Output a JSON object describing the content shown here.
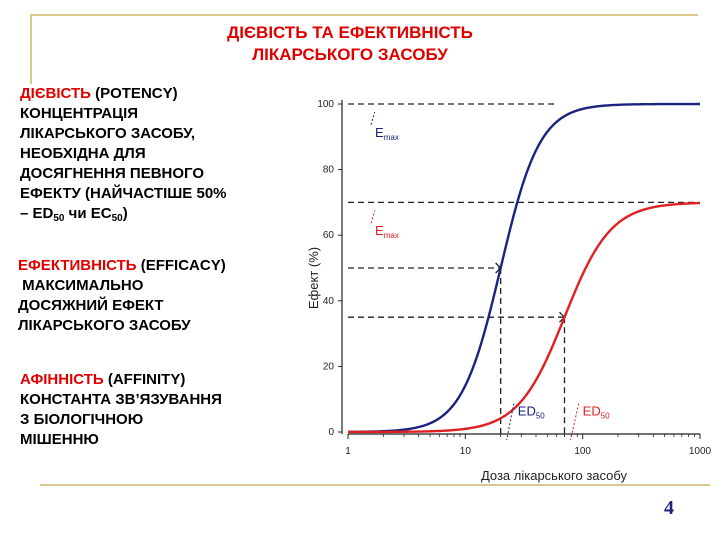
{
  "slide": {
    "title_line1": "ДІЄВІСТЬ ТА ЕФЕКТИВНІСТЬ",
    "title_line2": "ЛІКАРСЬКОГО ЗАСОБУ",
    "potency": {
      "term": "ДІЄВІСТЬ",
      "term_en": " (POTENCY)",
      "lines": [
        "КОНЦЕНТРАЦІЯ",
        "ЛІКАРСЬКОГО ЗАСОБУ,",
        "НЕОБХІДНА ДЛЯ",
        "ДОСЯГНЕННЯ ПЕВНОГО",
        "ЕФЕКТУ (НАЙЧАСТІШЕ 50%"
      ],
      "last_prefix": "– ED",
      "last_sub1": "50",
      "last_mid": " чи EC",
      "last_sub2": "50",
      "last_suffix": ")"
    },
    "efficacy": {
      "term": "ЕФЕКТИВНІСТЬ",
      "term_en": " (EFFICACY)",
      "lines": [
        " МАКСИМАЛЬНО",
        "ДОСЯЖНИЙ ЕФЕКТ",
        "ЛІКАРСЬКОГО ЗАСОБУ"
      ]
    },
    "affinity": {
      "term": "АФІННІСТЬ",
      "term_en": " (AFFINITY)",
      "lines": [
        "КОНСТАНТА ЗВ’ЯЗУВАННЯ",
        "З БІОЛОГІЧНОЮ",
        "МІШЕННЮ"
      ]
    },
    "page_number": "4"
  },
  "chart_data": {
    "type": "line",
    "xlabel": "Доза лікарського засобу",
    "ylabel": "Ефект (%)",
    "xscale": "log",
    "xlim": [
      1,
      1000
    ],
    "ylim": [
      0,
      100
    ],
    "xticks": [
      1,
      10,
      100,
      1000
    ],
    "xtick_labels": [
      "1",
      "10",
      "100",
      "1000"
    ],
    "yticks": [
      0,
      20,
      40,
      60,
      80,
      100
    ],
    "ytick_labels": [
      "0",
      "20",
      "40",
      "60",
      "80",
      "100"
    ],
    "grid": false,
    "series": [
      {
        "color": "#1a237e",
        "emax": 100,
        "ed50": 20,
        "hill": 2.6,
        "x": [
          1,
          5,
          10,
          15,
          20,
          30,
          50,
          100,
          300,
          1000
        ],
        "y": [
          0,
          1.5,
          14,
          32,
          50,
          74,
          92,
          99,
          100,
          100
        ]
      },
      {
        "color": "#e02020",
        "emax": 70,
        "ed50": 70,
        "hill": 2.2,
        "x": [
          1,
          10,
          20,
          40,
          70,
          100,
          200,
          400,
          1000
        ],
        "y": [
          0,
          0.1,
          4,
          17,
          35,
          48,
          63,
          68,
          70
        ]
      }
    ],
    "annotations": [
      {
        "text": "E",
        "sub": "max",
        "color": "#1a237e",
        "target": [
          1.5,
          100
        ],
        "label_at": [
          1.7,
          90
        ]
      },
      {
        "text": "E",
        "sub": "max",
        "color": "#e02020",
        "target": [
          1.5,
          70
        ],
        "label_at": [
          1.7,
          60
        ]
      },
      {
        "text": "ED",
        "sub": "50",
        "color": "#1a237e",
        "target": [
          20,
          0
        ],
        "label_at": [
          28,
          5
        ]
      },
      {
        "text": "ED",
        "sub": "50",
        "color": "#e02020",
        "target": [
          70,
          0
        ],
        "label_at": [
          100,
          5
        ]
      }
    ],
    "reference_lines": [
      {
        "color": "#222",
        "y": 100,
        "from_x": 1,
        "to_x": 60
      },
      {
        "color": "#222",
        "y": 70,
        "from_x": 1,
        "to_x": 1000
      },
      {
        "color": "#222",
        "y": 50,
        "from_x": 1,
        "to_x": 20,
        "drop_to_x": true
      },
      {
        "color": "#222",
        "y": 35,
        "from_x": 1,
        "to_x": 70,
        "drop_to_x": true
      }
    ]
  }
}
